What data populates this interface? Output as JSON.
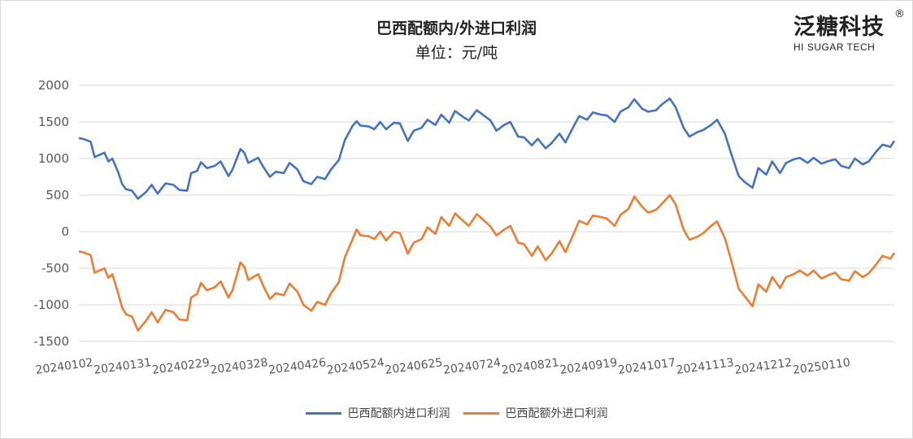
{
  "logo": {
    "cn": "泛糖科技",
    "en": "HI SUGAR TECH",
    "reg": "®"
  },
  "colors": {
    "domestic": "#4472C4",
    "foreign": "#ED7D31",
    "grid": "#d9d9d9",
    "text": "#595959"
  },
  "chart_data": {
    "type": "line",
    "title": "巴西配额内/外进口利润",
    "subtitle": "单位：元/吨",
    "ylim": [
      -1500,
      2000
    ],
    "yticks": [
      -1500,
      -1000,
      -500,
      0,
      500,
      1000,
      1500,
      2000
    ],
    "grid": "horizontal",
    "legend": "bottom",
    "x_start": "2024-01-02",
    "x_end": "2025-02-19",
    "x_tick_labels": [
      "20240102",
      "20240131",
      "20240229",
      "20240328",
      "20240426",
      "20240524",
      "20240625",
      "20240724",
      "20240821",
      "20240919",
      "20241017",
      "20241113",
      "20241212",
      "20250110"
    ],
    "series": [
      {
        "name": "巴西配额内进口利润",
        "points": [
          [
            "2024-01-02",
            1280
          ],
          [
            "2024-01-04",
            1270
          ],
          [
            "2024-01-08",
            1230
          ],
          [
            "2024-01-10",
            1020
          ],
          [
            "2024-01-15",
            1080
          ],
          [
            "2024-01-17",
            960
          ],
          [
            "2024-01-19",
            1000
          ],
          [
            "2024-01-22",
            810
          ],
          [
            "2024-01-24",
            650
          ],
          [
            "2024-01-26",
            580
          ],
          [
            "2024-01-29",
            560
          ],
          [
            "2024-02-01",
            450
          ],
          [
            "2024-02-05",
            540
          ],
          [
            "2024-02-08",
            640
          ],
          [
            "2024-02-11",
            520
          ],
          [
            "2024-02-15",
            660
          ],
          [
            "2024-02-19",
            640
          ],
          [
            "2024-02-22",
            570
          ],
          [
            "2024-02-26",
            560
          ],
          [
            "2024-02-28",
            800
          ],
          [
            "2024-03-02",
            830
          ],
          [
            "2024-03-04",
            950
          ],
          [
            "2024-03-07",
            870
          ],
          [
            "2024-03-11",
            900
          ],
          [
            "2024-03-14",
            960
          ],
          [
            "2024-03-18",
            760
          ],
          [
            "2024-03-20",
            850
          ],
          [
            "2024-03-24",
            1130
          ],
          [
            "2024-03-26",
            1080
          ],
          [
            "2024-03-28",
            940
          ],
          [
            "2024-04-02",
            1010
          ],
          [
            "2024-04-05",
            870
          ],
          [
            "2024-04-08",
            750
          ],
          [
            "2024-04-11",
            820
          ],
          [
            "2024-04-15",
            800
          ],
          [
            "2024-04-18",
            940
          ],
          [
            "2024-04-22",
            850
          ],
          [
            "2024-04-25",
            690
          ],
          [
            "2024-04-29",
            650
          ],
          [
            "2024-05-02",
            750
          ],
          [
            "2024-05-06",
            720
          ],
          [
            "2024-05-09",
            850
          ],
          [
            "2024-05-13",
            980
          ],
          [
            "2024-05-16",
            1250
          ],
          [
            "2024-05-20",
            1450
          ],
          [
            "2024-05-22",
            1510
          ],
          [
            "2024-05-24",
            1450
          ],
          [
            "2024-05-28",
            1440
          ],
          [
            "2024-05-31",
            1400
          ],
          [
            "2024-06-03",
            1500
          ],
          [
            "2024-06-06",
            1400
          ],
          [
            "2024-06-10",
            1490
          ],
          [
            "2024-06-13",
            1480
          ],
          [
            "2024-06-17",
            1240
          ],
          [
            "2024-06-20",
            1380
          ],
          [
            "2024-06-24",
            1420
          ],
          [
            "2024-06-27",
            1530
          ],
          [
            "2024-07-01",
            1460
          ],
          [
            "2024-07-04",
            1600
          ],
          [
            "2024-07-08",
            1490
          ],
          [
            "2024-07-11",
            1650
          ],
          [
            "2024-07-15",
            1570
          ],
          [
            "2024-07-18",
            1520
          ],
          [
            "2024-07-22",
            1660
          ],
          [
            "2024-07-25",
            1600
          ],
          [
            "2024-07-29",
            1520
          ],
          [
            "2024-08-01",
            1380
          ],
          [
            "2024-08-05",
            1460
          ],
          [
            "2024-08-08",
            1500
          ],
          [
            "2024-08-12",
            1300
          ],
          [
            "2024-08-15",
            1290
          ],
          [
            "2024-08-19",
            1180
          ],
          [
            "2024-08-22",
            1270
          ],
          [
            "2024-08-26",
            1140
          ],
          [
            "2024-08-29",
            1210
          ],
          [
            "2024-09-02",
            1340
          ],
          [
            "2024-09-05",
            1220
          ],
          [
            "2024-09-09",
            1430
          ],
          [
            "2024-09-12",
            1580
          ],
          [
            "2024-09-16",
            1530
          ],
          [
            "2024-09-19",
            1630
          ],
          [
            "2024-09-23",
            1600
          ],
          [
            "2024-09-26",
            1590
          ],
          [
            "2024-09-30",
            1500
          ],
          [
            "2024-10-03",
            1640
          ],
          [
            "2024-10-07",
            1700
          ],
          [
            "2024-10-10",
            1810
          ],
          [
            "2024-10-14",
            1680
          ],
          [
            "2024-10-17",
            1640
          ],
          [
            "2024-10-21",
            1660
          ],
          [
            "2024-10-24",
            1740
          ],
          [
            "2024-10-28",
            1820
          ],
          [
            "2024-10-31",
            1700
          ],
          [
            "2024-11-04",
            1420
          ],
          [
            "2024-11-07",
            1300
          ],
          [
            "2024-11-11",
            1360
          ],
          [
            "2024-11-14",
            1390
          ],
          [
            "2024-11-18",
            1460
          ],
          [
            "2024-11-21",
            1530
          ],
          [
            "2024-11-25",
            1340
          ],
          [
            "2024-11-28",
            1080
          ],
          [
            "2024-12-02",
            760
          ],
          [
            "2024-12-05",
            680
          ],
          [
            "2024-12-09",
            600
          ],
          [
            "2024-12-12",
            870
          ],
          [
            "2024-12-16",
            780
          ],
          [
            "2024-12-19",
            960
          ],
          [
            "2024-12-23",
            800
          ],
          [
            "2024-12-26",
            940
          ],
          [
            "2024-12-30",
            990
          ],
          [
            "2025-01-02",
            1010
          ],
          [
            "2025-01-06",
            940
          ],
          [
            "2025-01-09",
            1010
          ],
          [
            "2025-01-13",
            930
          ],
          [
            "2025-01-16",
            960
          ],
          [
            "2025-01-20",
            990
          ],
          [
            "2025-01-23",
            900
          ],
          [
            "2025-01-27",
            870
          ],
          [
            "2025-01-30",
            1000
          ],
          [
            "2025-02-03",
            920
          ],
          [
            "2025-02-06",
            960
          ],
          [
            "2025-02-10",
            1100
          ],
          [
            "2025-02-13",
            1190
          ],
          [
            "2025-02-17",
            1160
          ],
          [
            "2025-02-19",
            1240
          ]
        ]
      },
      {
        "name": "巴西配额外进口利润",
        "points": [
          [
            "2024-01-02",
            -270
          ],
          [
            "2024-01-04",
            -280
          ],
          [
            "2024-01-08",
            -320
          ],
          [
            "2024-01-10",
            -560
          ],
          [
            "2024-01-15",
            -500
          ],
          [
            "2024-01-17",
            -630
          ],
          [
            "2024-01-19",
            -580
          ],
          [
            "2024-01-22",
            -850
          ],
          [
            "2024-01-24",
            -1040
          ],
          [
            "2024-01-26",
            -1130
          ],
          [
            "2024-01-29",
            -1160
          ],
          [
            "2024-02-01",
            -1350
          ],
          [
            "2024-02-05",
            -1220
          ],
          [
            "2024-02-08",
            -1100
          ],
          [
            "2024-02-11",
            -1240
          ],
          [
            "2024-02-15",
            -1070
          ],
          [
            "2024-02-19",
            -1100
          ],
          [
            "2024-02-22",
            -1200
          ],
          [
            "2024-02-26",
            -1210
          ],
          [
            "2024-02-28",
            -900
          ],
          [
            "2024-03-02",
            -850
          ],
          [
            "2024-03-04",
            -700
          ],
          [
            "2024-03-07",
            -800
          ],
          [
            "2024-03-11",
            -760
          ],
          [
            "2024-03-14",
            -680
          ],
          [
            "2024-03-18",
            -900
          ],
          [
            "2024-03-20",
            -800
          ],
          [
            "2024-03-24",
            -420
          ],
          [
            "2024-03-26",
            -480
          ],
          [
            "2024-03-28",
            -660
          ],
          [
            "2024-04-02",
            -580
          ],
          [
            "2024-04-05",
            -760
          ],
          [
            "2024-04-08",
            -920
          ],
          [
            "2024-04-11",
            -840
          ],
          [
            "2024-04-15",
            -870
          ],
          [
            "2024-04-18",
            -710
          ],
          [
            "2024-04-22",
            -820
          ],
          [
            "2024-04-25",
            -1000
          ],
          [
            "2024-04-29",
            -1080
          ],
          [
            "2024-05-02",
            -960
          ],
          [
            "2024-05-06",
            -1000
          ],
          [
            "2024-05-09",
            -840
          ],
          [
            "2024-05-13",
            -690
          ],
          [
            "2024-05-16",
            -350
          ],
          [
            "2024-05-20",
            -100
          ],
          [
            "2024-05-22",
            30
          ],
          [
            "2024-05-24",
            -50
          ],
          [
            "2024-05-28",
            -60
          ],
          [
            "2024-05-31",
            -100
          ],
          [
            "2024-06-03",
            0
          ],
          [
            "2024-06-06",
            -120
          ],
          [
            "2024-06-10",
            0
          ],
          [
            "2024-06-13",
            -20
          ],
          [
            "2024-06-17",
            -300
          ],
          [
            "2024-06-20",
            -150
          ],
          [
            "2024-06-24",
            -100
          ],
          [
            "2024-06-27",
            60
          ],
          [
            "2024-07-01",
            -30
          ],
          [
            "2024-07-04",
            200
          ],
          [
            "2024-07-08",
            80
          ],
          [
            "2024-07-11",
            250
          ],
          [
            "2024-07-15",
            150
          ],
          [
            "2024-07-18",
            80
          ],
          [
            "2024-07-22",
            240
          ],
          [
            "2024-07-25",
            170
          ],
          [
            "2024-07-29",
            70
          ],
          [
            "2024-08-01",
            -50
          ],
          [
            "2024-08-05",
            30
          ],
          [
            "2024-08-08",
            80
          ],
          [
            "2024-08-12",
            -150
          ],
          [
            "2024-08-15",
            -170
          ],
          [
            "2024-08-19",
            -330
          ],
          [
            "2024-08-22",
            -200
          ],
          [
            "2024-08-26",
            -390
          ],
          [
            "2024-08-29",
            -300
          ],
          [
            "2024-09-02",
            -130
          ],
          [
            "2024-09-05",
            -280
          ],
          [
            "2024-09-09",
            -40
          ],
          [
            "2024-09-12",
            150
          ],
          [
            "2024-09-16",
            100
          ],
          [
            "2024-09-19",
            220
          ],
          [
            "2024-09-23",
            200
          ],
          [
            "2024-09-26",
            180
          ],
          [
            "2024-09-30",
            80
          ],
          [
            "2024-10-03",
            230
          ],
          [
            "2024-10-07",
            310
          ],
          [
            "2024-10-10",
            480
          ],
          [
            "2024-10-14",
            340
          ],
          [
            "2024-10-17",
            260
          ],
          [
            "2024-10-21",
            300
          ],
          [
            "2024-10-24",
            380
          ],
          [
            "2024-10-28",
            500
          ],
          [
            "2024-10-31",
            370
          ],
          [
            "2024-11-04",
            30
          ],
          [
            "2024-11-07",
            -110
          ],
          [
            "2024-11-11",
            -70
          ],
          [
            "2024-11-14",
            -20
          ],
          [
            "2024-11-18",
            80
          ],
          [
            "2024-11-21",
            140
          ],
          [
            "2024-11-25",
            -90
          ],
          [
            "2024-11-28",
            -370
          ],
          [
            "2024-12-02",
            -780
          ],
          [
            "2024-12-05",
            -880
          ],
          [
            "2024-12-09",
            -1020
          ],
          [
            "2024-12-12",
            -720
          ],
          [
            "2024-12-16",
            -820
          ],
          [
            "2024-12-19",
            -620
          ],
          [
            "2024-12-23",
            -770
          ],
          [
            "2024-12-26",
            -620
          ],
          [
            "2024-12-30",
            -580
          ],
          [
            "2025-01-02",
            -530
          ],
          [
            "2025-01-06",
            -600
          ],
          [
            "2025-01-09",
            -530
          ],
          [
            "2025-01-13",
            -640
          ],
          [
            "2025-01-16",
            -600
          ],
          [
            "2025-01-20",
            -560
          ],
          [
            "2025-01-23",
            -650
          ],
          [
            "2025-01-27",
            -670
          ],
          [
            "2025-01-30",
            -540
          ],
          [
            "2025-02-03",
            -620
          ],
          [
            "2025-02-06",
            -570
          ],
          [
            "2025-02-10",
            -440
          ],
          [
            "2025-02-13",
            -330
          ],
          [
            "2025-02-17",
            -370
          ],
          [
            "2025-02-19",
            -290
          ]
        ]
      }
    ]
  }
}
